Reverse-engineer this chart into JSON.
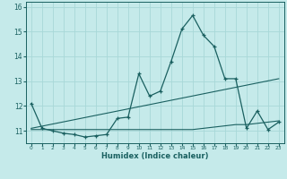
{
  "xlabel": "Humidex (Indice chaleur)",
  "background_color": "#c5eaea",
  "grid_color": "#a8d8d8",
  "line_color": "#1a6060",
  "xlim": [
    -0.5,
    23.5
  ],
  "ylim": [
    10.5,
    16.2
  ],
  "yticks": [
    11,
    12,
    13,
    14,
    15,
    16
  ],
  "xticks": [
    0,
    1,
    2,
    3,
    4,
    5,
    6,
    7,
    8,
    9,
    10,
    11,
    12,
    13,
    14,
    15,
    16,
    17,
    18,
    19,
    20,
    21,
    22,
    23
  ],
  "series1_x": [
    0,
    1,
    2,
    3,
    4,
    5,
    6,
    7,
    8,
    9,
    10,
    11,
    12,
    13,
    14,
    15,
    16,
    17,
    18,
    19,
    20,
    21,
    22,
    23
  ],
  "series1_y": [
    12.1,
    11.1,
    11.0,
    10.9,
    10.85,
    10.75,
    10.8,
    10.85,
    11.5,
    11.55,
    13.3,
    12.4,
    12.6,
    13.8,
    15.1,
    15.65,
    14.85,
    14.4,
    13.1,
    13.1,
    11.1,
    11.8,
    11.05,
    11.35
  ],
  "series2_x": [
    0,
    1,
    2,
    3,
    4,
    5,
    6,
    7,
    8,
    9,
    10,
    11,
    12,
    13,
    14,
    15,
    16,
    17,
    18,
    19,
    20,
    21,
    22,
    23
  ],
  "series2_y": [
    11.05,
    11.05,
    11.05,
    11.05,
    11.05,
    11.05,
    11.05,
    11.05,
    11.05,
    11.05,
    11.05,
    11.05,
    11.05,
    11.05,
    11.05,
    11.05,
    11.1,
    11.15,
    11.2,
    11.25,
    11.25,
    11.3,
    11.35,
    11.4
  ],
  "series3_x": [
    0,
    23
  ],
  "series3_y": [
    11.1,
    13.1
  ]
}
